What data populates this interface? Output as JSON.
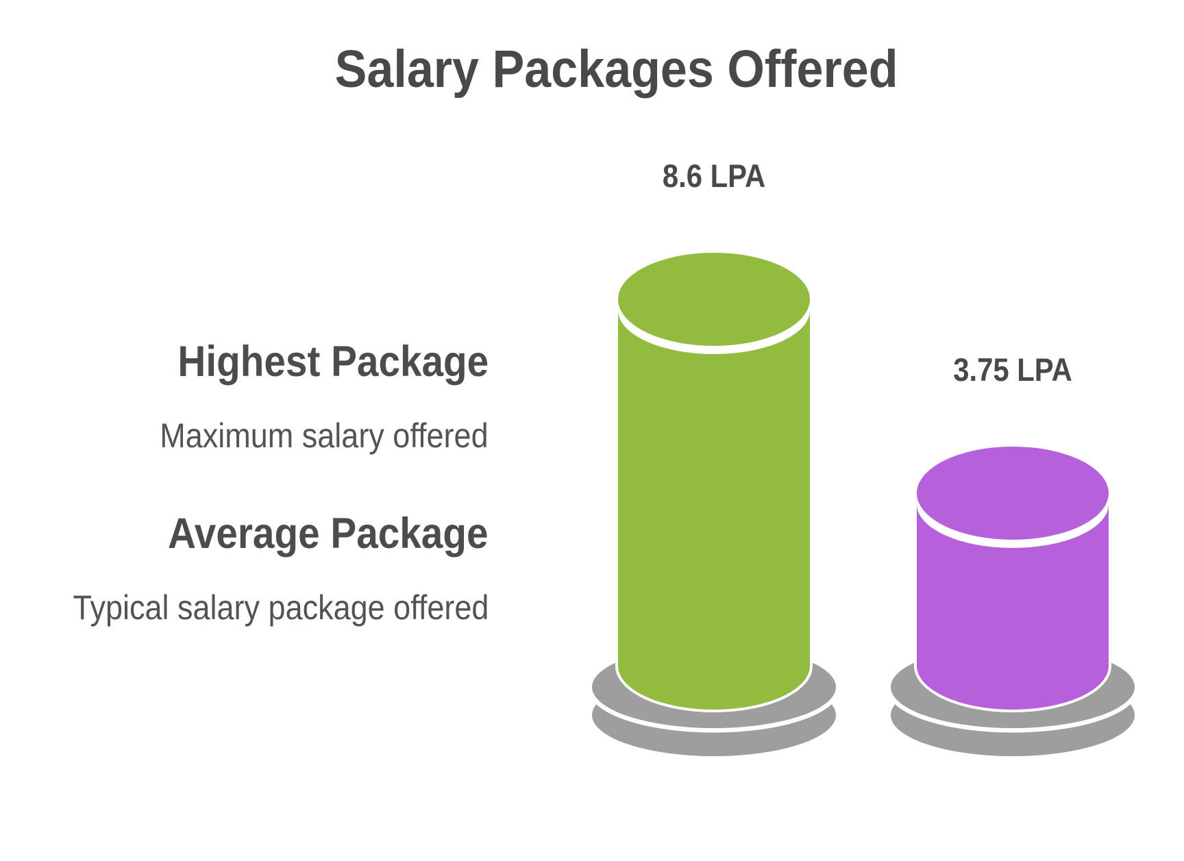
{
  "title": "Salary Packages Offered",
  "panels": [
    {
      "heading": "Highest Package",
      "description": "Maximum salary offered"
    },
    {
      "heading": "Average Package",
      "description": "Typical salary package offered"
    }
  ],
  "chart_data": {
    "type": "bar",
    "style": "3d-cylinder",
    "title": "Salary Packages Offered",
    "categories": [
      "Highest Package",
      "Average Package"
    ],
    "values": [
      8.6,
      3.75
    ],
    "unit": "LPA",
    "value_labels": [
      "8.6 LPA",
      "3.75 LPA"
    ],
    "series_colors": [
      "#92BB3F",
      "#B760DC"
    ],
    "pedestal_color": "#9E9E9E",
    "text_color": "#47494A",
    "legend": "none",
    "axes": "none"
  }
}
